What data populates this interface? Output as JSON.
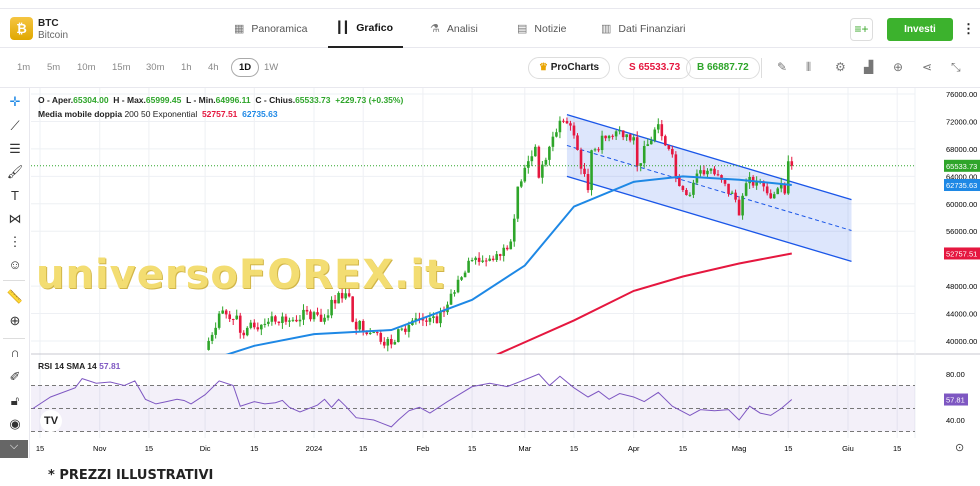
{
  "header": {
    "symbol": "BTC",
    "name": "Bitcoin",
    "logo_glyph": "₿",
    "tabs": [
      {
        "label": "Panoramica",
        "icon": "grid-icon"
      },
      {
        "label": "Grafico",
        "icon": "candles-icon",
        "active": true
      },
      {
        "label": "Analisi",
        "icon": "flask-icon"
      },
      {
        "label": "Notizie",
        "icon": "news-icon"
      },
      {
        "label": "Dati Finanziari",
        "icon": "bar-chart-icon"
      }
    ],
    "invest_label": "Investi"
  },
  "toolbar": {
    "timeframes": [
      "1m",
      "5m",
      "10m",
      "15m",
      "30m",
      "1h",
      "4h",
      "1D",
      "1W"
    ],
    "active_timeframe": "1D",
    "procharts": "ProCharts",
    "sell": "S 65533.73",
    "buy": "B 66887.72"
  },
  "legend": {
    "ohlc": [
      {
        "k": "O - Aper.",
        "v": "65304.00"
      },
      {
        "k": "H - Max.",
        "v": "65999.45"
      },
      {
        "k": "L - Min.",
        "v": "64996.11"
      },
      {
        "k": "C - Chius.",
        "v": "65533.73"
      }
    ],
    "change": "+229.73 (+0.35%)",
    "ma_label": "Media mobile doppia",
    "ma_params": "200 50 Exponential",
    "ma200": "52757.51",
    "ma50": "62735.63"
  },
  "rsi": {
    "label": "RSI 14 SMA 14",
    "value": "57.81"
  },
  "note": "* PREZZI ILLUSTRATIVI",
  "watermark": "universoFOREX.it",
  "colors": {
    "up": "#2ea52a",
    "down": "#e5173f",
    "ema50": "#1e88e5",
    "ema200": "#e5173f",
    "rsi": "#7e57c2",
    "channel": "#1a56e8"
  },
  "chart_data": {
    "type": "candlestick",
    "price_axis": {
      "ticks": [
        76000,
        72000,
        68000,
        64000,
        60000,
        56000,
        48000,
        44000,
        40000
      ],
      "range": [
        40000,
        76000
      ]
    },
    "price_labels": {
      "last": "65533.73",
      "ema50": "62735.63",
      "ema200": "52757.51"
    },
    "x_ticks": [
      {
        "d": "2023-10-15",
        "l": "15"
      },
      {
        "d": "2023-11-01",
        "l": "Nov"
      },
      {
        "d": "2023-11-15",
        "l": "15"
      },
      {
        "d": "2023-12-01",
        "l": "Dic"
      },
      {
        "d": "2023-12-15",
        "l": "15"
      },
      {
        "d": "2024-01-01",
        "l": "2024"
      },
      {
        "d": "2024-01-15",
        "l": "15"
      },
      {
        "d": "2024-02-01",
        "l": "Feb"
      },
      {
        "d": "2024-02-15",
        "l": "15"
      },
      {
        "d": "2024-03-01",
        "l": "Mar"
      },
      {
        "d": "2024-03-15",
        "l": "15"
      },
      {
        "d": "2024-04-01",
        "l": "Apr"
      },
      {
        "d": "2024-04-15",
        "l": "15"
      },
      {
        "d": "2024-05-01",
        "l": "Mag"
      },
      {
        "d": "2024-05-15",
        "l": "15"
      },
      {
        "d": "2024-06-01",
        "l": "Giu"
      },
      {
        "d": "2024-06-15",
        "l": "15"
      }
    ],
    "closes": [
      [
        "2023-12-01",
        38700
      ],
      [
        "2023-12-05",
        44000
      ],
      [
        "2023-12-10",
        43700
      ],
      [
        "2023-12-11",
        41200
      ],
      [
        "2023-12-15",
        42000
      ],
      [
        "2023-12-20",
        43600
      ],
      [
        "2023-12-25",
        43000
      ],
      [
        "2024-01-01",
        44200
      ],
      [
        "2024-01-03",
        42800
      ],
      [
        "2024-01-08",
        47000
      ],
      [
        "2024-01-11",
        46500
      ],
      [
        "2024-01-12",
        42800
      ],
      [
        "2024-01-18",
        41300
      ],
      [
        "2024-01-23",
        39500
      ],
      [
        "2024-01-26",
        41800
      ],
      [
        "2024-01-30",
        43300
      ],
      [
        "2024-02-05",
        42600
      ],
      [
        "2024-02-08",
        45300
      ],
      [
        "2024-02-10",
        47100
      ],
      [
        "2024-02-15",
        51800
      ],
      [
        "2024-02-20",
        52000
      ],
      [
        "2024-02-26",
        54500
      ],
      [
        "2024-02-28",
        62500
      ],
      [
        "2024-03-04",
        68300
      ],
      [
        "2024-03-05",
        63800
      ],
      [
        "2024-03-08",
        68300
      ],
      [
        "2024-03-11",
        72100
      ],
      [
        "2024-03-14",
        71400
      ],
      [
        "2024-03-19",
        62000
      ],
      [
        "2024-03-20",
        67800
      ],
      [
        "2024-03-25",
        69900
      ],
      [
        "2024-03-28",
        70700
      ],
      [
        "2024-04-01",
        69700
      ],
      [
        "2024-04-02",
        65500
      ],
      [
        "2024-04-08",
        71600
      ],
      [
        "2024-04-12",
        67200
      ],
      [
        "2024-04-13",
        64000
      ],
      [
        "2024-04-17",
        61300
      ],
      [
        "2024-04-20",
        64900
      ],
      [
        "2024-04-24",
        64300
      ],
      [
        "2024-04-30",
        60600
      ],
      [
        "2024-05-01",
        58300
      ],
      [
        "2024-05-03",
        63000
      ],
      [
        "2024-05-06",
        63200
      ],
      [
        "2024-05-10",
        60800
      ],
      [
        "2024-05-13",
        62900
      ],
      [
        "2024-05-14",
        61500
      ],
      [
        "2024-05-15",
        66200
      ],
      [
        "2024-05-16",
        65533.73
      ]
    ],
    "ema50": [
      [
        "2023-12-01",
        37000
      ],
      [
        "2023-12-15",
        39300
      ],
      [
        "2024-01-01",
        41000
      ],
      [
        "2024-01-23",
        41600
      ],
      [
        "2024-02-15",
        46000
      ],
      [
        "2024-03-01",
        51000
      ],
      [
        "2024-03-15",
        59600
      ],
      [
        "2024-04-01",
        63200
      ],
      [
        "2024-04-15",
        64000
      ],
      [
        "2024-05-01",
        63500
      ],
      [
        "2024-05-16",
        62735.63
      ]
    ],
    "ema200": [
      [
        "2024-02-22",
        38000
      ],
      [
        "2024-03-15",
        43000
      ],
      [
        "2024-04-01",
        47300
      ],
      [
        "2024-04-15",
        49400
      ],
      [
        "2024-05-01",
        51300
      ],
      [
        "2024-05-16",
        52757.51
      ]
    ],
    "channel": {
      "upper": [
        [
          "2024-03-13",
          73000
        ],
        [
          "2024-06-02",
          60600
        ]
      ],
      "lower": [
        [
          "2024-03-13",
          64000
        ],
        [
          "2024-06-02",
          51600
        ]
      ]
    },
    "rsi_axis": {
      "ticks": [
        80,
        40
      ],
      "bands": [
        70,
        50,
        30
      ]
    },
    "rsi": [
      [
        "2023-10-13",
        50
      ],
      [
        "2023-10-18",
        60
      ],
      [
        "2023-10-25",
        68
      ],
      [
        "2023-10-27",
        76
      ],
      [
        "2023-10-31",
        72
      ],
      [
        "2023-11-04",
        73
      ],
      [
        "2023-11-08",
        70
      ],
      [
        "2023-11-11",
        74
      ],
      [
        "2023-11-14",
        58
      ],
      [
        "2023-11-17",
        54
      ],
      [
        "2023-11-20",
        56
      ],
      [
        "2023-11-23",
        58
      ],
      [
        "2023-11-25",
        57
      ],
      [
        "2023-11-27",
        54
      ],
      [
        "2023-12-01",
        62
      ],
      [
        "2023-12-05",
        74
      ],
      [
        "2023-12-09",
        70
      ],
      [
        "2023-12-11",
        52
      ],
      [
        "2023-12-15",
        56
      ],
      [
        "2023-12-18",
        54
      ],
      [
        "2023-12-21",
        55
      ],
      [
        "2023-12-23",
        57
      ],
      [
        "2023-12-25",
        51
      ],
      [
        "2023-12-28",
        47
      ],
      [
        "2024-01-02",
        53
      ],
      [
        "2024-01-04",
        58
      ],
      [
        "2024-01-06",
        51
      ],
      [
        "2024-01-08",
        58
      ],
      [
        "2024-01-10",
        52
      ],
      [
        "2024-01-13",
        42
      ],
      [
        "2024-01-18",
        40
      ],
      [
        "2024-01-23",
        34
      ],
      [
        "2024-01-25",
        40
      ],
      [
        "2024-01-28",
        48
      ],
      [
        "2024-01-31",
        51
      ],
      [
        "2024-02-03",
        46
      ],
      [
        "2024-02-08",
        56
      ],
      [
        "2024-02-15",
        69
      ],
      [
        "2024-02-20",
        72
      ],
      [
        "2024-02-25",
        69
      ],
      [
        "2024-03-01",
        75
      ],
      [
        "2024-03-05",
        80
      ],
      [
        "2024-03-08",
        70
      ],
      [
        "2024-03-11",
        78
      ],
      [
        "2024-03-15",
        68
      ],
      [
        "2024-03-19",
        60
      ],
      [
        "2024-03-22",
        65
      ],
      [
        "2024-03-25",
        58
      ],
      [
        "2024-03-28",
        63
      ],
      [
        "2024-04-01",
        60
      ],
      [
        "2024-04-04",
        56
      ],
      [
        "2024-04-08",
        64
      ],
      [
        "2024-04-12",
        52
      ],
      [
        "2024-04-17",
        44
      ],
      [
        "2024-04-20",
        49
      ],
      [
        "2024-04-24",
        48
      ],
      [
        "2024-04-28",
        49
      ],
      [
        "2024-05-01",
        40
      ],
      [
        "2024-05-04",
        52
      ],
      [
        "2024-05-07",
        46
      ],
      [
        "2024-05-10",
        44
      ],
      [
        "2024-05-13",
        50
      ],
      [
        "2024-05-16",
        57.81
      ]
    ]
  }
}
